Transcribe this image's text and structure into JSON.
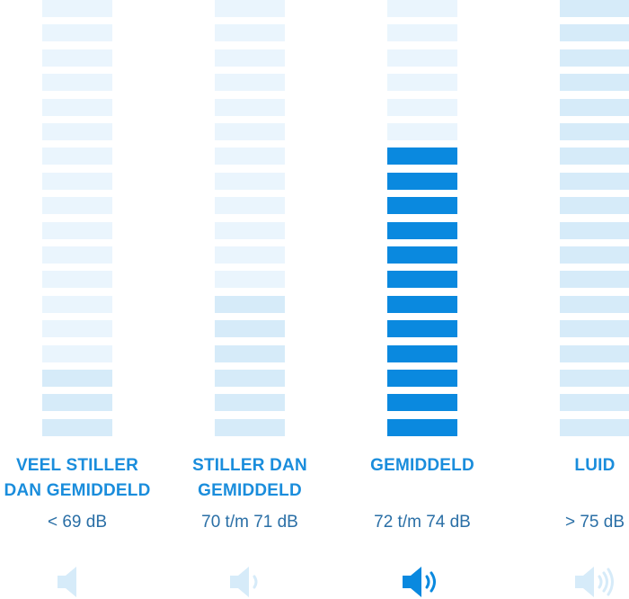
{
  "colors": {
    "active": "#0a89df",
    "dim": "#d6ebf9",
    "faint": "#eaf5fd",
    "label": "#1a8ddc",
    "value": "#2a6fa6"
  },
  "segments_total": 18,
  "levels": [
    {
      "line1": "VEEL STILLER",
      "line2": "DAN GEMIDDELD",
      "range": "< 69 dB",
      "filled": 3,
      "active": false,
      "icon": "speaker-muted-icon",
      "waves": 0
    },
    {
      "line1": "STILLER DAN",
      "line2": "GEMIDDELD",
      "range": "70 t/m 71 dB",
      "filled": 6,
      "active": false,
      "icon": "speaker-low-icon",
      "waves": 1
    },
    {
      "line1": "",
      "line2": "GEMIDDELD",
      "range": "72 t/m 74 dB",
      "filled": 12,
      "active": true,
      "icon": "speaker-medium-icon",
      "waves": 2
    },
    {
      "line1": "",
      "line2": "LUID",
      "range": "> 75 dB",
      "filled": 18,
      "active": false,
      "icon": "speaker-high-icon",
      "waves": 3
    }
  ]
}
